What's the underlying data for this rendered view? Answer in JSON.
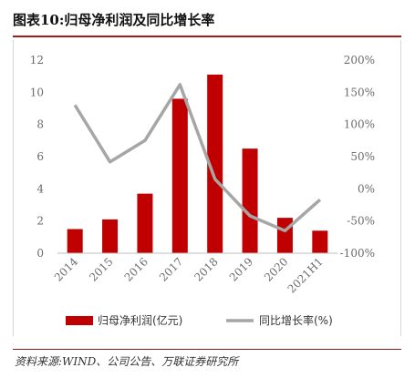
{
  "header": {
    "title": "图表10:归母净利润及同比增长率"
  },
  "footer": {
    "source": "资料来源:WIND、公司公告、万联证券研究所"
  },
  "chart_data": {
    "type": "bar",
    "categories": [
      "2014",
      "2015",
      "2016",
      "2017",
      "2018",
      "2019",
      "2020",
      "2021H1"
    ],
    "series": [
      {
        "name": "归母净利润(亿元)",
        "type": "bar",
        "axis": "left",
        "color": "#c00000",
        "values": [
          1.5,
          2.1,
          3.7,
          9.6,
          11.1,
          6.5,
          2.2,
          1.4
        ]
      },
      {
        "name": "同比增长率(%)",
        "type": "line",
        "axis": "right",
        "color": "#a6a6a6",
        "values": [
          130,
          42,
          75,
          162,
          15,
          -42,
          -65,
          -17
        ]
      }
    ],
    "y_left": {
      "range": [
        0,
        12
      ],
      "ticks": [
        "0",
        "2",
        "4",
        "6",
        "8",
        "10",
        "12"
      ]
    },
    "y_right": {
      "range": [
        -100,
        200
      ],
      "ticks": [
        "-100%",
        "-50%",
        "0%",
        "50%",
        "100%",
        "150%",
        "200%"
      ]
    },
    "grid": false,
    "legend": "bottom"
  }
}
